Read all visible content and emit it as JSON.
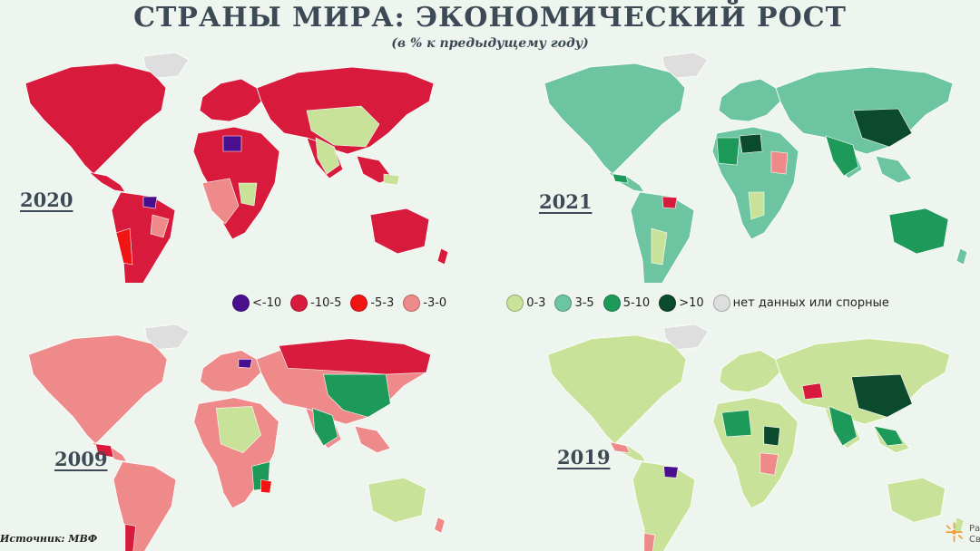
{
  "header": {
    "title": "СТРАНЫ МИРА: ЭКОНОМИЧЕСКИЙ РОСТ",
    "subtitle": "(в % к предыдущему году)"
  },
  "legend": [
    {
      "label": "<-10",
      "color": "#4a0f8f"
    },
    {
      "label": "-10-5",
      "color": "#d81b3c"
    },
    {
      "label": "-5-3",
      "color": "#f01414"
    },
    {
      "label": "-3-0",
      "color": "#ee8a8a"
    },
    {
      "label": "0-3",
      "color": "#c9e29a"
    },
    {
      "label": "3-5",
      "color": "#6cc4a0"
    },
    {
      "label": "5-10",
      "color": "#1d9a5a"
    },
    {
      "label": ">10",
      "color": "#0b4a2c"
    },
    {
      "label": "нет данных или спорные",
      "color": "#dedede"
    }
  ],
  "maps": [
    {
      "year": "2020",
      "base": "#d81b3c",
      "accents": [
        "#ee8a8a",
        "#c9e29a",
        "#4a0f8f",
        "#f01414"
      ]
    },
    {
      "year": "2021",
      "base": "#6cc4a0",
      "accents": [
        "#1d9a5a",
        "#0b4a2c",
        "#c9e29a",
        "#d81b3c"
      ]
    },
    {
      "year": "2009",
      "base": "#ee8a8a",
      "accents": [
        "#d81b3c",
        "#1d9a5a",
        "#c9e29a",
        "#4a0f8f"
      ]
    },
    {
      "year": "2019",
      "base": "#c9e29a",
      "accents": [
        "#1d9a5a",
        "#0b4a2c",
        "#ee8a8a",
        "#d81b3c"
      ]
    }
  ],
  "source": "Источник: МВФ",
  "logo": {
    "line1": "Ра",
    "line2": "Св"
  }
}
